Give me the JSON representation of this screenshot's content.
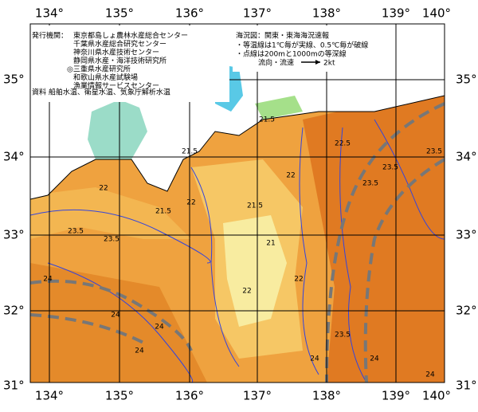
{
  "map": {
    "longitude_labels": [
      "134°",
      "135°",
      "136°",
      "137°",
      "138°",
      "139°",
      "140°"
    ],
    "latitude_labels": [
      "35°",
      "34°",
      "33°",
      "32°",
      "31°"
    ],
    "legend": {
      "agencies_label": "発行機関：",
      "agencies": [
        "東京都島しょ農林水産総合センター",
        "千葉県水産総合研究センター",
        "神奈川県水産技術センター",
        "静岡県水産・海洋技術研究所",
        "◎三重県水産研究所",
        "和歌山県水産試験場",
        "漁業情報サービスセンター"
      ],
      "source": "資料 船舶水温、衛星水温、気象庁解析水温",
      "chart_name": "海況図：関東・東海海況速報",
      "notes": [
        "・等温線は1℃毎が実線、0.5℃毎が破線",
        "・点線は200mと1000mの等深線"
      ],
      "current": "流向・流速",
      "current_scale": "2kt"
    },
    "isotherm_labels": [
      "21.5",
      "21.5",
      "21.5",
      "22",
      "22",
      "22",
      "21.5",
      "22",
      "23.5",
      "23.5",
      "23.5",
      "24",
      "24",
      "24",
      "23.5",
      "23.5",
      "24",
      "24",
      "22",
      "21",
      "22.5",
      "23.5",
      "24",
      "24"
    ]
  }
}
